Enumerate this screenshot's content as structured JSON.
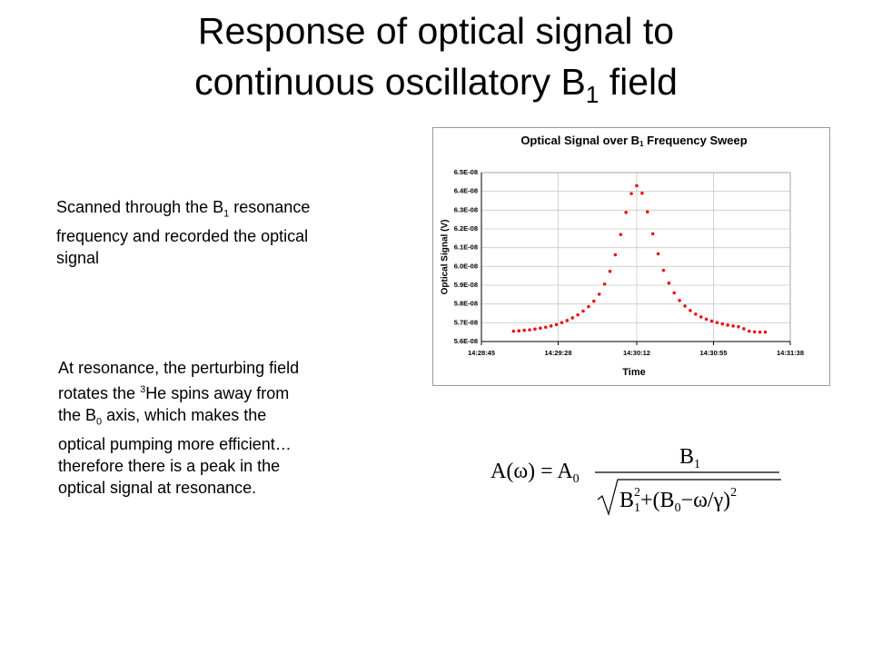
{
  "title": {
    "text": "Response of optical signal to continuous oscillatory B",
    "sub": "1",
    "end": " field"
  },
  "paragraphs": [
    {
      "a": "Scanned through the B",
      "sub": "1",
      "b": " resonance frequency and recorded the optical signal"
    },
    {
      "a": "At resonance, the perturbing field rotates the ",
      "sup": "3",
      "b": "He spins away from the B",
      "sub": "0",
      "c": " axis, which makes the optical pumping more efficient… therefore there is a peak in the optical signal at resonance."
    }
  ],
  "formula": {
    "lhs": "A(ω) = A",
    "lhs_sub": "0",
    "num": "B",
    "num_sub": "1",
    "den": [
      "B",
      "1",
      "2",
      "+(B",
      "0",
      "−ω/γ)",
      "2"
    ]
  },
  "chart_data": {
    "type": "scatter",
    "title": "Optical Signal over B",
    "title_sub": "1",
    "title_end": " Frequency Sweep",
    "x_label": "Time",
    "y_label": "Optical Signal (V)",
    "color": "#e8141c",
    "grid": true,
    "xlim": [
      "14:28:45",
      "14:31:38"
    ],
    "xticks": [
      "14:28:45",
      "14:29:28",
      "14:30:12",
      "14:30:55",
      "14:31:38"
    ],
    "ylim": [
      5.6e-08,
      6.5e-08
    ],
    "yticks": [
      {
        "value": 5.6e-08,
        "label": "5.6E-08"
      },
      {
        "value": 5.7e-08,
        "label": "5.7E-08"
      },
      {
        "value": 5.8e-08,
        "label": "5.8E-08"
      },
      {
        "value": 5.9e-08,
        "label": "5.9E-08"
      },
      {
        "value": 6e-08,
        "label": "6.0E-08"
      },
      {
        "value": 6.1e-08,
        "label": "6.1E-08"
      },
      {
        "value": 6.2e-08,
        "label": "6.2E-08"
      },
      {
        "value": 6.3e-08,
        "label": "6.3E-08"
      },
      {
        "value": 6.4e-08,
        "label": "6.4E-08"
      },
      {
        "value": 6.5e-08,
        "label": "6.5E-08"
      }
    ],
    "x": [
      "14:29:03",
      "14:29:06",
      "14:29:09",
      "14:29:12",
      "14:29:15",
      "14:29:18",
      "14:29:21",
      "14:29:24",
      "14:29:27",
      "14:29:30",
      "14:29:33",
      "14:29:36",
      "14:29:39",
      "14:29:42",
      "14:29:45",
      "14:29:48",
      "14:29:51",
      "14:29:54",
      "14:29:57",
      "14:30:00",
      "14:30:03",
      "14:30:06",
      "14:30:09",
      "14:30:12",
      "14:30:15",
      "14:30:18",
      "14:30:21",
      "14:30:24",
      "14:30:27",
      "14:30:30",
      "14:30:33",
      "14:30:36",
      "14:30:39",
      "14:30:42",
      "14:30:45",
      "14:30:48",
      "14:30:51",
      "14:30:54",
      "14:30:57",
      "14:31:00",
      "14:31:03",
      "14:31:06",
      "14:31:09",
      "14:31:12",
      "14:31:15",
      "14:31:18",
      "14:31:21",
      "14:31:24"
    ],
    "values": [
      5.655e-08,
      5.657e-08,
      5.66e-08,
      5.662e-08,
      5.666e-08,
      5.671e-08,
      5.676e-08,
      5.683e-08,
      5.69e-08,
      5.701e-08,
      5.712e-08,
      5.726e-08,
      5.742e-08,
      5.762e-08,
      5.786e-08,
      5.815e-08,
      5.852e-08,
      5.906e-08,
      5.974e-08,
      6.062e-08,
      6.17e-08,
      6.288e-08,
      6.388e-08,
      6.43e-08,
      6.39e-08,
      6.291e-08,
      6.174e-08,
      6.067e-08,
      5.979e-08,
      5.911e-08,
      5.859e-08,
      5.819e-08,
      5.789e-08,
      5.765e-08,
      5.746e-08,
      5.731e-08,
      5.719e-08,
      5.709e-08,
      5.701e-08,
      5.694e-08,
      5.688e-08,
      5.683e-08,
      5.679e-08,
      5.668e-08,
      5.655e-08,
      5.652e-08,
      5.65e-08,
      5.65e-08
    ]
  }
}
